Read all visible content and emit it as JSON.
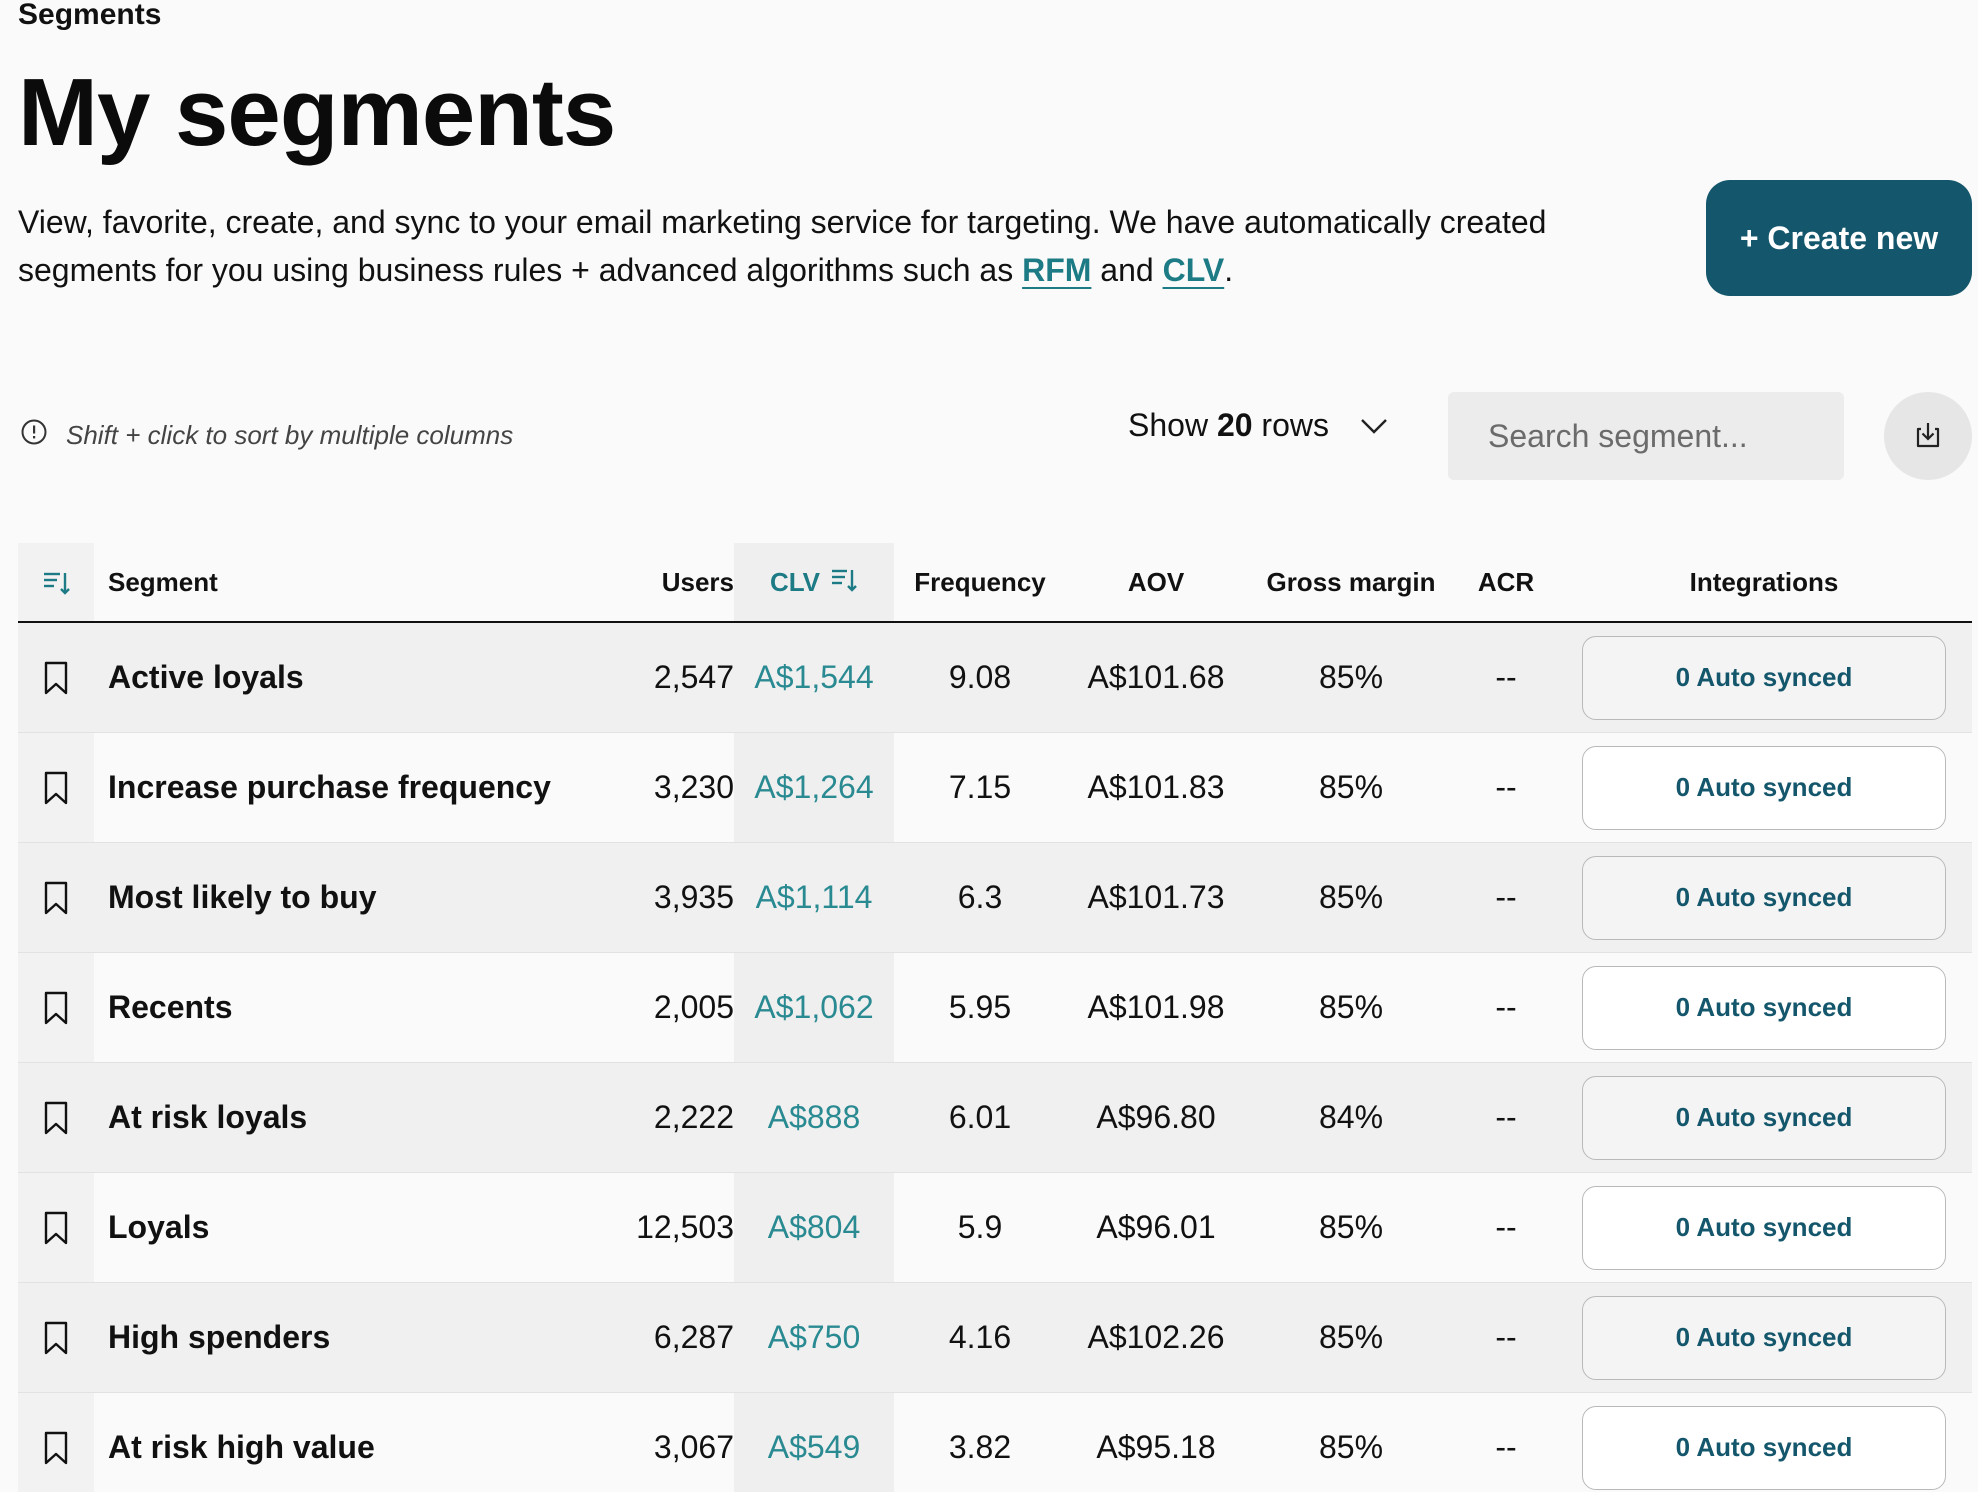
{
  "breadcrumb": "Segments",
  "title": "My segments",
  "description": {
    "text_before": "View, favorite, create, and sync to your email marketing service for targeting. We have automatically created segments for you using business rules + advanced algorithms such as ",
    "link_rfm": "RFM",
    "text_mid": " and ",
    "link_clv": "CLV",
    "text_after": "."
  },
  "create_button": "+ Create new",
  "hint": "Shift + click to sort by multiple columns",
  "rows_select": {
    "prefix": "Show",
    "count": "20",
    "suffix": "rows"
  },
  "search": {
    "placeholder": "Search segment..."
  },
  "table": {
    "headers": {
      "segment": "Segment",
      "users": "Users",
      "clv": "CLV",
      "frequency": "Frequency",
      "aov": "AOV",
      "gross_margin": "Gross margin",
      "acr": "ACR",
      "integrations": "Integrations"
    },
    "rows": [
      {
        "segment": "Active loyals",
        "users": "2,547",
        "clv": "A$1,544",
        "frequency": "9.08",
        "aov": "A$101.68",
        "gross_margin": "85%",
        "acr": "--",
        "integrations": "0 Auto synced"
      },
      {
        "segment": "Increase purchase frequency",
        "users": "3,230",
        "clv": "A$1,264",
        "frequency": "7.15",
        "aov": "A$101.83",
        "gross_margin": "85%",
        "acr": "--",
        "integrations": "0 Auto synced"
      },
      {
        "segment": "Most likely to buy",
        "users": "3,935",
        "clv": "A$1,114",
        "frequency": "6.3",
        "aov": "A$101.73",
        "gross_margin": "85%",
        "acr": "--",
        "integrations": "0 Auto synced"
      },
      {
        "segment": "Recents",
        "users": "2,005",
        "clv": "A$1,062",
        "frequency": "5.95",
        "aov": "A$101.98",
        "gross_margin": "85%",
        "acr": "--",
        "integrations": "0 Auto synced"
      },
      {
        "segment": "At risk loyals",
        "users": "2,222",
        "clv": "A$888",
        "frequency": "6.01",
        "aov": "A$96.80",
        "gross_margin": "84%",
        "acr": "--",
        "integrations": "0 Auto synced"
      },
      {
        "segment": "Loyals",
        "users": "12,503",
        "clv": "A$804",
        "frequency": "5.9",
        "aov": "A$96.01",
        "gross_margin": "85%",
        "acr": "--",
        "integrations": "0 Auto synced"
      },
      {
        "segment": "High spenders",
        "users": "6,287",
        "clv": "A$750",
        "frequency": "4.16",
        "aov": "A$102.26",
        "gross_margin": "85%",
        "acr": "--",
        "integrations": "0 Auto synced"
      },
      {
        "segment": "At risk high value",
        "users": "3,067",
        "clv": "A$549",
        "frequency": "3.82",
        "aov": "A$95.18",
        "gross_margin": "85%",
        "acr": "--",
        "integrations": "0 Auto synced"
      }
    ]
  },
  "colors": {
    "accent": "#14566b",
    "link": "#1d7b85",
    "clv_text": "#2a8a92"
  }
}
